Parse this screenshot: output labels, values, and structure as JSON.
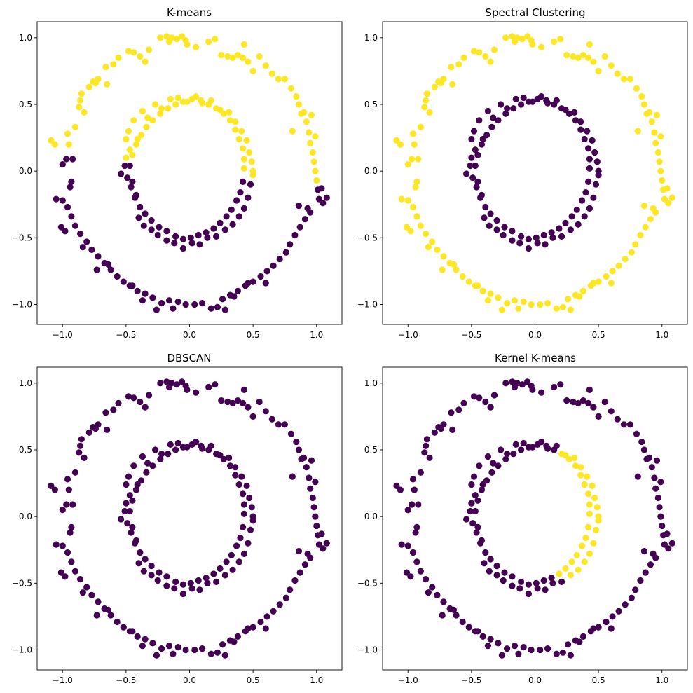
{
  "chart_data": {
    "type": "scatter",
    "description_note": "Two concentric noisy circles (outer radius ~1.0, inner radius ~0.5), clustered by four methods.",
    "colors": {
      "cluster_0": "#440154",
      "cluster_1": "#fde725"
    },
    "xlim": [
      -1.2,
      1.2
    ],
    "ylim": [
      -1.15,
      1.12
    ],
    "x_ticks": [
      -1.0,
      -0.5,
      0.0,
      0.5,
      1.0
    ],
    "x_tick_labels": [
      "−1.0",
      "−0.5",
      "0.0",
      "0.5",
      "1.0"
    ],
    "y_ticks": [
      -1.0,
      -0.5,
      0.0,
      0.5,
      1.0
    ],
    "y_tick_labels": [
      "−1.0",
      "−0.5",
      "0.0",
      "0.5",
      "1.0"
    ],
    "points": [
      [
        -1.09,
        0.23
      ],
      [
        -1.06,
        0.2
      ],
      [
        -1.05,
        -0.21
      ],
      [
        -1.0,
        -0.22
      ],
      [
        -0.97,
        0.09
      ],
      [
        -0.95,
        0.2
      ],
      [
        -0.96,
        0.28
      ],
      [
        -0.94,
        -0.12
      ],
      [
        -0.93,
        -0.08
      ],
      [
        -0.92,
        0.09
      ],
      [
        -0.9,
        0.33
      ],
      [
        -0.87,
        0.48
      ],
      [
        -0.86,
        0.53
      ],
      [
        -0.85,
        0.58
      ],
      [
        -0.79,
        0.63
      ],
      [
        -0.76,
        0.67
      ],
      [
        -0.74,
        0.66
      ],
      [
        -0.72,
        0.69
      ],
      [
        -0.66,
        0.78
      ],
      [
        -0.6,
        0.8
      ],
      [
        -0.56,
        0.85
      ],
      [
        -0.48,
        0.9
      ],
      [
        -0.44,
        0.89
      ],
      [
        -0.39,
        0.86
      ],
      [
        -0.32,
        0.91
      ],
      [
        -0.23,
        1.0
      ],
      [
        -0.18,
        1.01
      ],
      [
        -0.16,
        0.97
      ],
      [
        -0.14,
        1.0
      ],
      [
        -0.1,
        0.99
      ],
      [
        -0.03,
        0.98
      ],
      [
        -0.02,
        0.95
      ],
      [
        0.05,
        0.93
      ],
      [
        0.15,
        0.97
      ],
      [
        0.2,
        0.99
      ],
      [
        0.25,
        0.87
      ],
      [
        0.3,
        0.86
      ],
      [
        0.34,
        0.85
      ],
      [
        0.38,
        0.87
      ],
      [
        0.42,
        0.85
      ],
      [
        0.46,
        0.82
      ],
      [
        0.5,
        0.75
      ],
      [
        0.55,
        0.86
      ],
      [
        0.6,
        0.79
      ],
      [
        0.65,
        0.73
      ],
      [
        0.7,
        0.69
      ],
      [
        0.75,
        0.69
      ],
      [
        0.8,
        0.62
      ],
      [
        0.84,
        0.56
      ],
      [
        0.86,
        0.5
      ],
      [
        0.88,
        0.43
      ],
      [
        0.9,
        0.44
      ],
      [
        0.92,
        0.37
      ],
      [
        0.94,
        0.29
      ],
      [
        0.95,
        0.21
      ],
      [
        0.97,
        0.14
      ],
      [
        0.98,
        0.07
      ],
      [
        0.99,
        0.0
      ],
      [
        1.0,
        -0.07
      ],
      [
        1.01,
        -0.14
      ],
      [
        1.02,
        -0.21
      ],
      [
        1.05,
        -0.24
      ],
      [
        1.08,
        -0.2
      ],
      [
        0.95,
        -0.31
      ],
      [
        0.91,
        -0.36
      ],
      [
        0.87,
        -0.42
      ],
      [
        0.83,
        -0.48
      ],
      [
        0.79,
        -0.55
      ],
      [
        0.76,
        -0.61
      ],
      [
        0.71,
        -0.66
      ],
      [
        0.66,
        -0.71
      ],
      [
        0.61,
        -0.75
      ],
      [
        0.56,
        -0.79
      ],
      [
        0.5,
        -0.83
      ],
      [
        0.44,
        -0.86
      ],
      [
        0.38,
        -0.9
      ],
      [
        0.32,
        -0.93
      ],
      [
        0.26,
        -0.96
      ],
      [
        0.22,
        -1.02
      ],
      [
        0.17,
        -1.03
      ],
      [
        0.1,
        -0.99
      ],
      [
        0.04,
        -1.0
      ],
      [
        -0.03,
        -1.0
      ],
      [
        -0.09,
        -0.98
      ],
      [
        -0.16,
        -0.97
      ],
      [
        -0.22,
        -0.99
      ],
      [
        -0.29,
        -0.95
      ],
      [
        -0.35,
        -0.92
      ],
      [
        -0.41,
        -0.9
      ],
      [
        -0.47,
        -0.86
      ],
      [
        -0.52,
        -0.83
      ],
      [
        -0.57,
        -0.79
      ],
      [
        -0.62,
        -0.74
      ],
      [
        -0.67,
        -0.69
      ],
      [
        -0.72,
        -0.64
      ],
      [
        -0.77,
        -0.59
      ],
      [
        -0.81,
        -0.53
      ],
      [
        -0.86,
        -0.47
      ],
      [
        -0.9,
        -0.41
      ],
      [
        -0.93,
        -0.34
      ],
      [
        -0.96,
        -0.27
      ],
      [
        -1.01,
        -0.42
      ],
      [
        -0.98,
        -0.45
      ],
      [
        -0.84,
        -0.57
      ],
      [
        -0.73,
        -0.74
      ],
      [
        -0.64,
        -0.7
      ],
      [
        -0.45,
        -0.86
      ],
      [
        -0.37,
        -0.97
      ],
      [
        -0.26,
        -1.04
      ],
      [
        -0.13,
        -1.03
      ],
      [
        0.28,
        -1.04
      ],
      [
        0.35,
        -0.94
      ],
      [
        0.46,
        -0.84
      ],
      [
        0.6,
        -0.84
      ],
      [
        0.86,
        -0.26
      ],
      [
        0.93,
        -0.28
      ],
      [
        1.04,
        -0.13
      ],
      [
        0.99,
        0.26
      ],
      [
        0.96,
        0.42
      ],
      [
        0.81,
        0.3
      ],
      [
        0.43,
        0.95
      ],
      [
        -0.06,
        1.01
      ],
      [
        -0.35,
        0.82
      ],
      [
        -0.65,
        0.65
      ],
      [
        -0.83,
        0.44
      ],
      [
        -1.0,
        0.05
      ],
      [
        -0.51,
        0.04
      ],
      [
        -0.5,
        0.1
      ],
      [
        -0.5,
        0.24
      ],
      [
        -0.48,
        0.3
      ],
      [
        -0.47,
        0.16
      ],
      [
        -0.45,
        -0.08
      ],
      [
        -0.44,
        0.38
      ],
      [
        -0.42,
        -0.18
      ],
      [
        -0.41,
        0.24
      ],
      [
        -0.4,
        -0.35
      ],
      [
        -0.37,
        0.45
      ],
      [
        -0.36,
        -0.41
      ],
      [
        -0.33,
        0.4
      ],
      [
        -0.3,
        -0.44
      ],
      [
        -0.27,
        0.5
      ],
      [
        -0.25,
        -0.48
      ],
      [
        -0.22,
        0.47
      ],
      [
        -0.18,
        -0.52
      ],
      [
        -0.15,
        0.54
      ],
      [
        -0.12,
        -0.54
      ],
      [
        -0.09,
        0.55
      ],
      [
        -0.05,
        -0.58
      ],
      [
        -0.02,
        0.52
      ],
      [
        0.02,
        -0.54
      ],
      [
        0.05,
        0.56
      ],
      [
        0.08,
        -0.55
      ],
      [
        0.1,
        0.51
      ],
      [
        0.14,
        -0.5
      ],
      [
        0.17,
        0.53
      ],
      [
        0.21,
        -0.49
      ],
      [
        0.24,
        0.46
      ],
      [
        0.28,
        -0.44
      ],
      [
        0.31,
        0.44
      ],
      [
        0.34,
        -0.4
      ],
      [
        0.36,
        0.37
      ],
      [
        0.39,
        -0.34
      ],
      [
        0.41,
        0.3
      ],
      [
        0.43,
        -0.28
      ],
      [
        0.45,
        0.23
      ],
      [
        0.46,
        -0.2
      ],
      [
        0.47,
        0.14
      ],
      [
        0.48,
        -0.1
      ],
      [
        0.49,
        0.07
      ],
      [
        0.5,
        0.0
      ],
      [
        0.5,
        -0.03
      ],
      [
        -0.49,
        -0.05
      ],
      [
        -0.46,
        -0.12
      ],
      [
        -0.43,
        -0.2
      ],
      [
        -0.39,
        -0.27
      ],
      [
        -0.35,
        -0.32
      ],
      [
        -0.3,
        -0.37
      ],
      [
        -0.24,
        -0.42
      ],
      [
        -0.18,
        -0.45
      ],
      [
        -0.11,
        -0.49
      ],
      [
        -0.05,
        -0.51
      ],
      [
        0.01,
        -0.5
      ],
      [
        0.07,
        -0.48
      ],
      [
        0.13,
        -0.46
      ],
      [
        0.19,
        -0.43
      ],
      [
        0.24,
        -0.39
      ],
      [
        0.29,
        -0.34
      ],
      [
        0.33,
        -0.29
      ],
      [
        0.37,
        -0.22
      ],
      [
        0.4,
        -0.16
      ],
      [
        0.42,
        -0.08
      ],
      [
        0.43,
        0.02
      ],
      [
        0.43,
        0.09
      ],
      [
        0.42,
        0.17
      ],
      [
        0.39,
        0.24
      ],
      [
        0.36,
        0.31
      ],
      [
        0.32,
        0.38
      ],
      [
        0.27,
        0.43
      ],
      [
        0.21,
        0.47
      ],
      [
        0.15,
        0.5
      ],
      [
        0.09,
        0.53
      ],
      [
        0.02,
        0.54
      ],
      [
        -0.05,
        0.52
      ],
      [
        -0.11,
        0.5
      ],
      [
        -0.17,
        0.47
      ],
      [
        -0.23,
        0.43
      ],
      [
        -0.29,
        0.38
      ],
      [
        -0.34,
        0.33
      ],
      [
        -0.38,
        0.27
      ],
      [
        -0.42,
        0.2
      ],
      [
        -0.45,
        0.12
      ],
      [
        -0.47,
        0.04
      ],
      [
        -0.54,
        -0.02
      ]
    ],
    "panels": [
      {
        "title": "K-means",
        "rule": "kmeans"
      },
      {
        "title": "Spectral Clustering",
        "rule": "ring"
      },
      {
        "title": "DBSCAN",
        "rule": "none"
      },
      {
        "title": "Kernel K-means",
        "rule": "kernel"
      }
    ]
  }
}
